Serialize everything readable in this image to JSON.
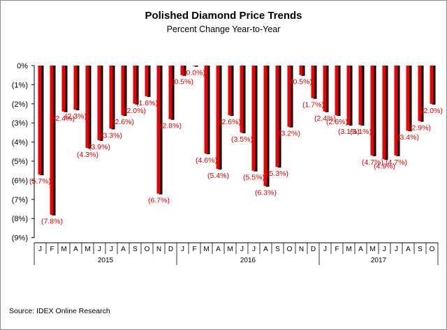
{
  "chart_data": {
    "type": "bar",
    "title": "Polished Diamond Price Trends",
    "subtitle": "Percent Change Year-to-Year",
    "ylim": [
      -9,
      0
    ],
    "yticks": [
      0,
      -1,
      -2,
      -3,
      -4,
      -5,
      -6,
      -7,
      -8,
      -9
    ],
    "ytick_labels": [
      "0%",
      "(1%)",
      "(2%)",
      "(3%)",
      "(4%)",
      "(5%)",
      "(6%)",
      "(7%)",
      "(8%)",
      "(9%)"
    ],
    "categories": [
      "J",
      "F",
      "M",
      "A",
      "M",
      "J",
      "J",
      "A",
      "S",
      "O",
      "N",
      "D",
      "J",
      "F",
      "M",
      "A",
      "M",
      "J",
      "J",
      "A",
      "S",
      "O",
      "N",
      "D",
      "J",
      "F",
      "M",
      "A",
      "M",
      "J",
      "J",
      "A",
      "S",
      "O"
    ],
    "years": [
      {
        "label": "2015",
        "count": 12
      },
      {
        "label": "2016",
        "count": 12
      },
      {
        "label": "2017",
        "count": 10
      }
    ],
    "values": [
      -5.7,
      -7.8,
      -2.4,
      -2.3,
      -4.3,
      -3.9,
      -3.3,
      -2.6,
      -2.0,
      -1.6,
      -6.7,
      -2.8,
      -0.5,
      -0.0,
      -4.6,
      -5.4,
      -2.6,
      -3.5,
      -5.5,
      -6.3,
      -5.3,
      -3.2,
      -0.5,
      -1.7,
      -2.4,
      -2.6,
      -3.1,
      -3.1,
      -4.7,
      -4.9,
      -4.7,
      -3.4,
      -2.9,
      -2.0
    ],
    "data_labels": [
      "(5.7%)",
      "(7.8%)",
      "(2.4%)",
      "(2.3%)",
      "(4.3%)",
      "(3.9%)",
      "(3.3%)",
      "(2.6%)",
      "(2.0%)",
      "(1.6%)",
      "(6.7%)",
      "(2.8%)",
      "(0.5%)",
      "(0.0%)",
      "(4.6%)",
      "(5.4%)",
      "(2.6%)",
      "(3.5%)",
      "(5.5%)",
      "(6.3%)",
      "(5.3%)",
      "(3.2%)",
      "(0.5%)",
      "(1.7%)",
      "(2.4%)",
      "(2.6%)",
      "(3.1%)",
      "(3.1%)",
      "(4.7%)",
      "(4.9%)",
      "(4.7%)",
      "(3.4%)",
      "(2.9%)",
      "(2.0%)"
    ],
    "bar_color": "#ee0000",
    "shadow_color": "#000000",
    "label_color": "#e00000",
    "grid": false,
    "legend": "none"
  },
  "source": "Source: IDEX Online Research"
}
